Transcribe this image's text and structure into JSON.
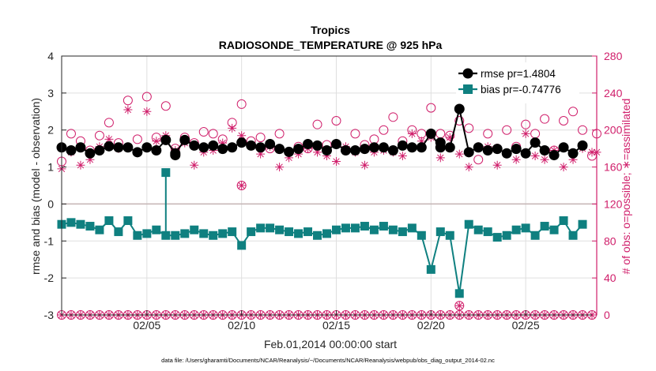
{
  "chart_data": {
    "type": "line",
    "title": "Tropics",
    "subtitle": "RADIOSONDE_TEMPERATURE @ 925 hPa",
    "xlabel": "Feb.01,2014 00:00:00 start",
    "ylabel": "rmse and bias (model - observation)",
    "y2label": "# of obs: o=possible; ∗=assimilated",
    "footnote": "data file: /Users/gharamti/Documents/NCAR/Reanalysis/~/Documents/NCAR/Reanalysis/webpub/obs_diag_output_2014-02.nc",
    "xlim": [
      0.5,
      28.75
    ],
    "ylim": [
      -3,
      4
    ],
    "y2lim": [
      0,
      280
    ],
    "x_ticks": [
      5,
      10,
      15,
      20,
      25
    ],
    "x_tick_labels": [
      "02/05",
      "02/10",
      "02/15",
      "02/20",
      "02/25"
    ],
    "y_ticks": [
      -3,
      -2,
      -1,
      0,
      1,
      2,
      3,
      4
    ],
    "y_tick_labels": [
      "-3",
      "-2",
      "-1",
      "0",
      "1",
      "2",
      "3",
      "4"
    ],
    "y2_ticks": [
      0,
      40,
      80,
      120,
      160,
      200,
      240,
      280
    ],
    "y2_tick_labels": [
      "0",
      "40",
      "80",
      "120",
      "160",
      "200",
      "240",
      "280"
    ],
    "legend_position": "top-right",
    "colors": {
      "rmse": "#000000",
      "bias": "#0f8080",
      "obs": "#d01f6b",
      "axis": "#262626",
      "grid": "#dfdfdf",
      "zero_line": "#c4b4b4"
    },
    "x": [
      0.5,
      1,
      1.5,
      2,
      2.5,
      3,
      3.5,
      4,
      4.5,
      5,
      5.5,
      6,
      6.5,
      7,
      7.5,
      8,
      8.5,
      9,
      9.5,
      10,
      10.5,
      11,
      11.5,
      12,
      12.5,
      13,
      13.5,
      14,
      14.5,
      15,
      15.5,
      16,
      16.5,
      17,
      17.5,
      18,
      18.5,
      19,
      19.5,
      20,
      20.5,
      21,
      21.5,
      22,
      22.5,
      23,
      23.5,
      24,
      24.5,
      25,
      25.5,
      26,
      26.5,
      27,
      27.5,
      28
    ],
    "series": [
      {
        "name": "rmse pr=1.4804",
        "marker": "circle",
        "values": [
          1.53,
          1.45,
          1.53,
          1.37,
          1.45,
          1.56,
          1.53,
          1.53,
          1.4,
          1.53,
          1.45,
          1.73,
          1.37,
          1.73,
          1.58,
          1.53,
          1.58,
          1.49,
          1.53,
          1.66,
          1.58,
          1.53,
          1.62,
          1.49,
          1.41,
          1.49,
          1.62,
          1.58,
          1.45,
          1.62,
          1.45,
          1.45,
          1.49,
          1.53,
          1.53,
          1.45,
          1.58,
          1.53,
          1.53,
          1.9,
          1.53,
          1.53,
          2.57,
          1.4,
          1.53,
          1.45,
          1.49,
          1.37,
          1.49,
          1.37,
          1.66,
          1.45,
          1.32,
          1.53,
          1.37,
          1.58
        ]
      },
      {
        "name": "bias pr=-0.74776",
        "marker": "square",
        "values": [
          -0.55,
          -0.5,
          -0.55,
          -0.6,
          -0.7,
          -0.45,
          -0.75,
          -0.45,
          -0.85,
          -0.8,
          -0.7,
          -0.85,
          -0.85,
          -0.8,
          -0.7,
          -0.8,
          -0.85,
          -0.8,
          -0.75,
          -1.12,
          -0.75,
          -0.65,
          -0.65,
          -0.7,
          -0.75,
          -0.8,
          -0.75,
          -0.85,
          -0.8,
          -0.7,
          -0.65,
          -0.65,
          -0.6,
          -0.7,
          -0.6,
          -0.7,
          -0.75,
          -0.65,
          -0.85,
          -1.77,
          -0.75,
          -0.85,
          -2.42,
          -0.55,
          -0.7,
          -0.75,
          -0.9,
          -0.85,
          -0.7,
          -0.65,
          -0.85,
          -0.6,
          -0.7,
          -0.45,
          -0.85,
          -0.55
        ]
      }
    ],
    "extra_points": [
      {
        "series": "rmse pr=1.4804",
        "x": 6.5,
        "value": 1.32
      },
      {
        "series": "rmse pr=1.4804",
        "x": 20.5,
        "value": 1.66
      },
      {
        "series": "bias pr=-0.74776",
        "x": 6,
        "value": 0.85
      }
    ],
    "obs_possible": [
      166,
      196,
      188,
      178,
      194,
      208,
      186,
      232,
      190,
      236,
      192,
      226,
      180,
      192,
      186,
      198,
      196,
      190,
      208,
      228,
      188,
      192,
      180,
      196,
      176,
      182,
      180,
      206,
      184,
      210,
      178,
      196,
      184,
      190,
      200,
      214,
      188,
      200,
      196,
      224,
      196,
      194,
      210,
      202,
      168,
      196,
      180,
      200,
      182,
      206,
      196,
      212,
      178,
      210,
      220,
      200,
      172,
      196
    ],
    "obs_assimilated": [
      158,
      176,
      162,
      168,
      182,
      190,
      180,
      222,
      176,
      220,
      188,
      194,
      178,
      186,
      162,
      176,
      178,
      186,
      202,
      194,
      184,
      174,
      182,
      160,
      170,
      174,
      180,
      176,
      172,
      166,
      182,
      176,
      162,
      176,
      178,
      176,
      172,
      196,
      188,
      192,
      170,
      192,
      174,
      160,
      182,
      182,
      162,
      174,
      168,
      196,
      172,
      168,
      178,
      160,
      168,
      180,
      176,
      176
    ],
    "obs_x_possible": [
      0.5,
      1,
      1.5,
      2,
      2.5,
      3,
      3.5,
      4,
      4.5,
      5,
      5.5,
      6,
      6.5,
      7,
      7.5,
      8,
      8.5,
      9,
      9.5,
      10,
      10.5,
      11,
      11.5,
      12,
      12.5,
      13,
      13.5,
      14,
      14.5,
      15,
      15.5,
      16,
      16.5,
      17,
      17.5,
      18,
      18.5,
      19,
      19.5,
      20,
      20.5,
      21,
      21.5,
      22,
      22.5,
      23,
      23.5,
      24,
      24.5,
      25,
      25.5,
      26,
      26.5,
      27,
      27.5,
      28,
      28.5,
      28.75
    ],
    "obs_x_assimilated": [
      0.5,
      1,
      1.5,
      2,
      2.5,
      3,
      3.5,
      4,
      4.5,
      5,
      5.5,
      6,
      6.5,
      7,
      7.5,
      8,
      8.5,
      9,
      9.5,
      10,
      10.5,
      11,
      11.5,
      12,
      12.5,
      13,
      13.5,
      14,
      14.5,
      15,
      15.5,
      16,
      16.5,
      17,
      17.5,
      18,
      18.5,
      19,
      19.5,
      20,
      20.5,
      21,
      21.5,
      22,
      22.5,
      23,
      23.5,
      24,
      24.5,
      25,
      25.5,
      26,
      26.5,
      27,
      27.5,
      28,
      28.5,
      28.75
    ],
    "obs_isolated": [
      {
        "x": 10,
        "possible": 140,
        "assimilated": 140
      },
      {
        "x": 21.5,
        "possible": 10,
        "assimilated": 10
      }
    ],
    "obs_zero_row": {
      "value": 0,
      "x_start": 0.5,
      "x_end": 28.75,
      "step": 0.5
    }
  }
}
